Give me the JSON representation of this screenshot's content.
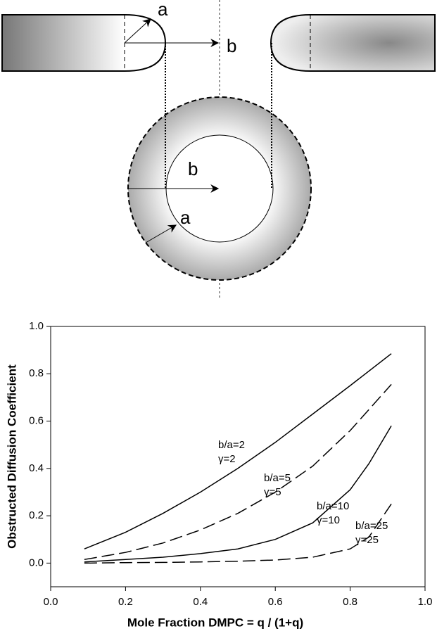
{
  "diagram": {
    "labels": [
      "a",
      "b",
      "b",
      "a"
    ]
  },
  "chart_data": {
    "type": "line",
    "xlabel": "Mole Fraction DMPC = q / (1+q)",
    "ylabel": "Obstructed Diffusion Coefficient",
    "xlim": [
      0,
      1
    ],
    "ylim": [
      -0.1,
      1
    ],
    "xticks": [
      {
        "value": 0,
        "label": "0.0"
      },
      0.2,
      0.4,
      0.6,
      0.8,
      {
        "value": 1,
        "label": "1.0"
      }
    ],
    "yticks": [
      {
        "value": 0,
        "label": "0.0"
      },
      0.2,
      0.4,
      0.6,
      0.8,
      {
        "value": 1,
        "label": "1.0"
      }
    ],
    "series": [
      {
        "name": "b/a=2",
        "param": "γ=2",
        "color": "#000000",
        "dash": false,
        "x": [
          0.09,
          0.2,
          0.3,
          0.4,
          0.5,
          0.6,
          0.7,
          0.8,
          0.91
        ],
        "values": [
          0.06,
          0.13,
          0.21,
          0.3,
          0.4,
          0.51,
          0.63,
          0.75,
          0.885
        ]
      },
      {
        "name": "b/a=5",
        "param": "γ=5",
        "color": "#000000",
        "dash": true,
        "x": [
          0.09,
          0.2,
          0.3,
          0.4,
          0.5,
          0.6,
          0.7,
          0.8,
          0.91
        ],
        "values": [
          0.015,
          0.045,
          0.085,
          0.14,
          0.21,
          0.3,
          0.41,
          0.56,
          0.755
        ]
      },
      {
        "name": "b/a=10",
        "param": "γ=10",
        "color": "#000000",
        "dash": false,
        "x": [
          0.09,
          0.2,
          0.3,
          0.4,
          0.5,
          0.6,
          0.7,
          0.8,
          0.85,
          0.91
        ],
        "values": [
          0.005,
          0.015,
          0.025,
          0.04,
          0.06,
          0.1,
          0.17,
          0.31,
          0.42,
          0.58
        ]
      },
      {
        "name": "b/a=25",
        "param": "γ=25",
        "color": "#000000",
        "dash": true,
        "x": [
          0.09,
          0.2,
          0.3,
          0.4,
          0.5,
          0.6,
          0.7,
          0.8,
          0.85,
          0.91
        ],
        "values": [
          0,
          0.002,
          0.003,
          0.005,
          0.008,
          0.013,
          0.025,
          0.06,
          0.11,
          0.25
        ]
      }
    ]
  }
}
